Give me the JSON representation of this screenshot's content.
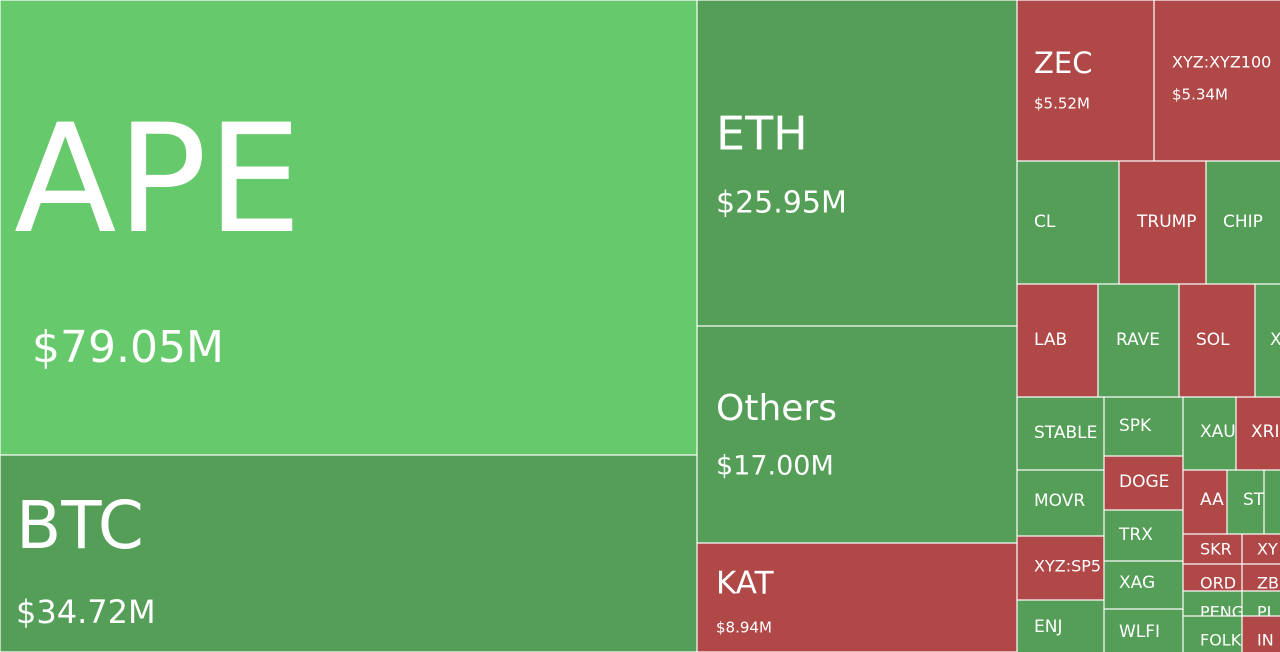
{
  "tiles": [
    {
      "label": "APE",
      "value": "$79.05M",
      "color": "#66c96b"
    },
    {
      "label": "BTC",
      "value": "$34.72M",
      "color": "#549e58"
    },
    {
      "label": "ETH",
      "value": "$25.95M",
      "color": "#549e58"
    },
    {
      "label": "Others",
      "value": "$17.00M",
      "color": "#549e58"
    },
    {
      "label": "KAT",
      "value": "$8.94M",
      "color": "#b04848"
    },
    {
      "label": "ZEC",
      "value": "$5.52M",
      "color": "#b04848"
    },
    {
      "label": "XYZ:XYZ100",
      "value": "$5.34M",
      "color": "#b04848"
    },
    {
      "label": "CL",
      "color": "#549e58"
    },
    {
      "label": "TRUMP",
      "color": "#b04848"
    },
    {
      "label": "CHIP",
      "color": "#549e58"
    },
    {
      "label": "LAB",
      "color": "#b04848"
    },
    {
      "label": "RAVE",
      "color": "#549e58"
    },
    {
      "label": "SOL",
      "color": "#b04848"
    },
    {
      "label": "X",
      "color": "#549e58"
    },
    {
      "label": "STABLE",
      "color": "#549e58"
    },
    {
      "label": "SPK",
      "color": "#549e58"
    },
    {
      "label": "XAU",
      "color": "#549e58"
    },
    {
      "label": "XRI",
      "color": "#b04848"
    },
    {
      "label": "MOVR",
      "color": "#549e58"
    },
    {
      "label": "DOGE",
      "color": "#b04848"
    },
    {
      "label": "TRX",
      "color": "#549e58"
    },
    {
      "label": "AA",
      "color": "#b04848"
    },
    {
      "label": "ST",
      "color": "#549e58"
    },
    {
      "color": "#549e58"
    },
    {
      "label": "XYZ:SP5",
      "color": "#b04848"
    },
    {
      "label": "XAG",
      "color": "#549e58"
    },
    {
      "label": "ENJ",
      "color": "#549e58"
    },
    {
      "label": "WLFI",
      "color": "#549e58"
    },
    {
      "label": "SKR",
      "color": "#b04848"
    },
    {
      "label": "XY",
      "color": "#b04848"
    },
    {
      "label": "ORD",
      "color": "#b04848"
    },
    {
      "label": "ZB",
      "color": "#b04848"
    },
    {
      "label": "PENG",
      "color": "#549e58"
    },
    {
      "label": "PL",
      "color": "#549e58"
    },
    {
      "label": "FOLK",
      "color": "#549e58"
    },
    {
      "label": "IN",
      "color": "#b04848"
    }
  ]
}
